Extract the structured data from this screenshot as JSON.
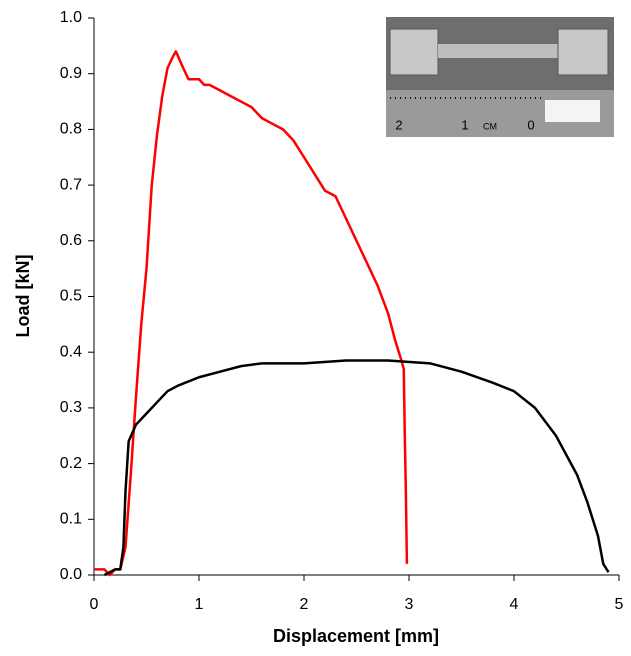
{
  "chart_data": {
    "type": "line",
    "x_label": "Displacement [mm]",
    "y_label": "Load [kN]",
    "xlim": [
      0,
      5
    ],
    "ylim": [
      0,
      1.0
    ],
    "xticks": [
      0,
      1,
      2,
      3,
      4,
      5
    ],
    "yticks": [
      {
        "value": 0,
        "label": "0.0"
      },
      {
        "value": 0.1,
        "label": "0.1"
      },
      {
        "value": 0.2,
        "label": "0.2"
      },
      {
        "value": 0.3,
        "label": "0.3"
      },
      {
        "value": 0.4,
        "label": "0.4"
      },
      {
        "value": 0.5,
        "label": "0.5"
      },
      {
        "value": 0.6,
        "label": "0.6"
      },
      {
        "value": 0.7,
        "label": "0.7"
      },
      {
        "value": 0.8,
        "label": "0.8"
      },
      {
        "value": 0.9,
        "label": "0.9"
      },
      {
        "value": 1.0,
        "label": "1.0"
      }
    ],
    "grid": false,
    "inset_labels": [
      "2",
      "1",
      "CM",
      "0"
    ],
    "series": [
      {
        "color": "#ff0000",
        "x": [
          0,
          0.1,
          0.15,
          0.2,
          0.25,
          0.3,
          0.35,
          0.4,
          0.45,
          0.5,
          0.55,
          0.6,
          0.65,
          0.7,
          0.75,
          0.78,
          0.85,
          0.9,
          1.0,
          1.05,
          1.1,
          1.2,
          1.3,
          1.4,
          1.5,
          1.6,
          1.7,
          1.8,
          1.9,
          2.0,
          2.1,
          2.2,
          2.3,
          2.4,
          2.5,
          2.6,
          2.7,
          2.8,
          2.87,
          2.92,
          2.95,
          2.96,
          2.97,
          2.98
        ],
        "values": [
          0.01,
          0.01,
          0.0,
          0.01,
          0.01,
          0.05,
          0.18,
          0.32,
          0.45,
          0.55,
          0.7,
          0.79,
          0.86,
          0.91,
          0.93,
          0.94,
          0.91,
          0.89,
          0.89,
          0.88,
          0.88,
          0.87,
          0.86,
          0.85,
          0.84,
          0.82,
          0.81,
          0.8,
          0.78,
          0.75,
          0.72,
          0.69,
          0.68,
          0.64,
          0.6,
          0.56,
          0.52,
          0.47,
          0.42,
          0.39,
          0.37,
          0.25,
          0.15,
          0.02
        ]
      },
      {
        "color": "#000000",
        "x": [
          0.1,
          0.2,
          0.25,
          0.28,
          0.3,
          0.33,
          0.4,
          0.5,
          0.6,
          0.7,
          0.8,
          1.0,
          1.2,
          1.4,
          1.6,
          2.0,
          2.4,
          2.8,
          3.2,
          3.5,
          3.8,
          4.0,
          4.2,
          4.4,
          4.6,
          4.7,
          4.8,
          4.85,
          4.9
        ],
        "values": [
          0,
          0.01,
          0.01,
          0.05,
          0.15,
          0.24,
          0.27,
          0.29,
          0.31,
          0.33,
          0.34,
          0.355,
          0.365,
          0.375,
          0.38,
          0.38,
          0.385,
          0.385,
          0.38,
          0.365,
          0.345,
          0.33,
          0.3,
          0.25,
          0.18,
          0.13,
          0.07,
          0.02,
          0.005
        ]
      }
    ]
  }
}
